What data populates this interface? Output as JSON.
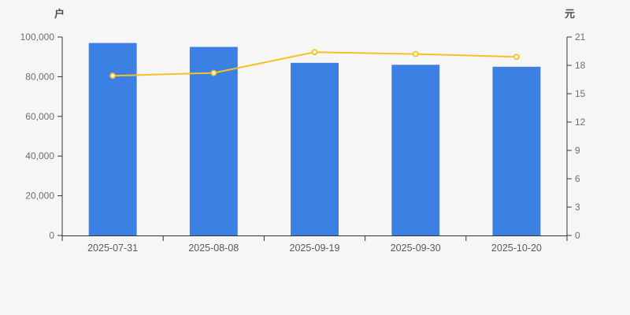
{
  "chart_data": {
    "type": "bar",
    "title": "",
    "categories": [
      "2025-07-31",
      "2025-08-08",
      "2025-09-19",
      "2025-09-30",
      "2025-10-20"
    ],
    "series": [
      {
        "name": "holder-count-bars",
        "kind": "bar",
        "axis": "left",
        "values": [
          97000,
          95000,
          87000,
          86000,
          85000
        ],
        "color": "#3b80e2"
      },
      {
        "name": "price-line",
        "kind": "line",
        "axis": "right",
        "values": [
          16.9,
          17.2,
          19.4,
          19.2,
          18.9
        ],
        "color": "#f7c122",
        "marker_fill": "#ffffff"
      }
    ],
    "left_axis": {
      "name": "户",
      "min": 0,
      "max": 100000,
      "tick_step": 20000,
      "tick_labels": [
        "0",
        "20,000",
        "40,000",
        "60,000",
        "80,000",
        "100,000"
      ]
    },
    "right_axis": {
      "name": "元",
      "min": 0,
      "max": 21,
      "tick_step": 3,
      "tick_labels": [
        "0",
        "3",
        "6",
        "9",
        "12",
        "15",
        "18",
        "21"
      ]
    },
    "legend": [],
    "grid": "off",
    "colors": {
      "background": "#f6f6f6",
      "axis_line": "#333333",
      "tick_text": "#6e6e6e",
      "axis_name_text": "#4d4d4d",
      "x_label_text": "#595959"
    }
  }
}
